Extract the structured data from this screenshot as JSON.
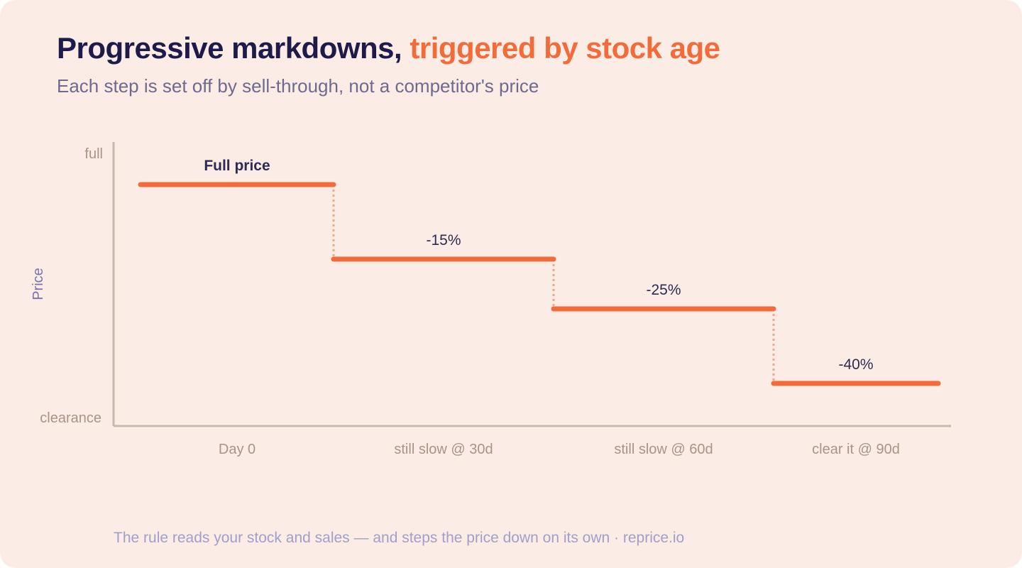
{
  "title": {
    "main": "Progressive markdowns, ",
    "accent": "triggered by stock age"
  },
  "subtitle": "Each step is set off by sell-through, not a competitor's price",
  "footer": "The rule reads your stock and sales — and steps the price down on its own · reprice.io",
  "colors": {
    "background": "#fbede5",
    "title": "#1e1b4b",
    "accent": "#f26b3a",
    "connector": "#f2a68b",
    "axis": "#c8b8ae",
    "axis_text": "#a89487",
    "ylabel": "#7b72a8",
    "step_label": "#2e2a52",
    "footer": "#a29ec8"
  },
  "chart_data": {
    "type": "line",
    "style": "step",
    "xlabel": "",
    "ylabel": "Price",
    "y_tick_labels": {
      "top": "full",
      "bottom": "clearance"
    },
    "markdown_range": [
      0,
      50
    ],
    "grid": false,
    "categories": [
      "Day 0",
      "still slow @ 30d",
      "still slow @ 60d",
      "clear it @ 90d"
    ],
    "steps": [
      {
        "category": "Day 0",
        "markdown_pct": 0,
        "label": "Full price",
        "label_bold": true
      },
      {
        "category": "still slow @ 30d",
        "markdown_pct": 15,
        "label": "-15%",
        "label_bold": false
      },
      {
        "category": "still slow @ 60d",
        "markdown_pct": 25,
        "label": "-25%",
        "label_bold": false
      },
      {
        "category": "clear it @ 90d",
        "markdown_pct": 40,
        "label": "-40%",
        "label_bold": false
      }
    ]
  }
}
